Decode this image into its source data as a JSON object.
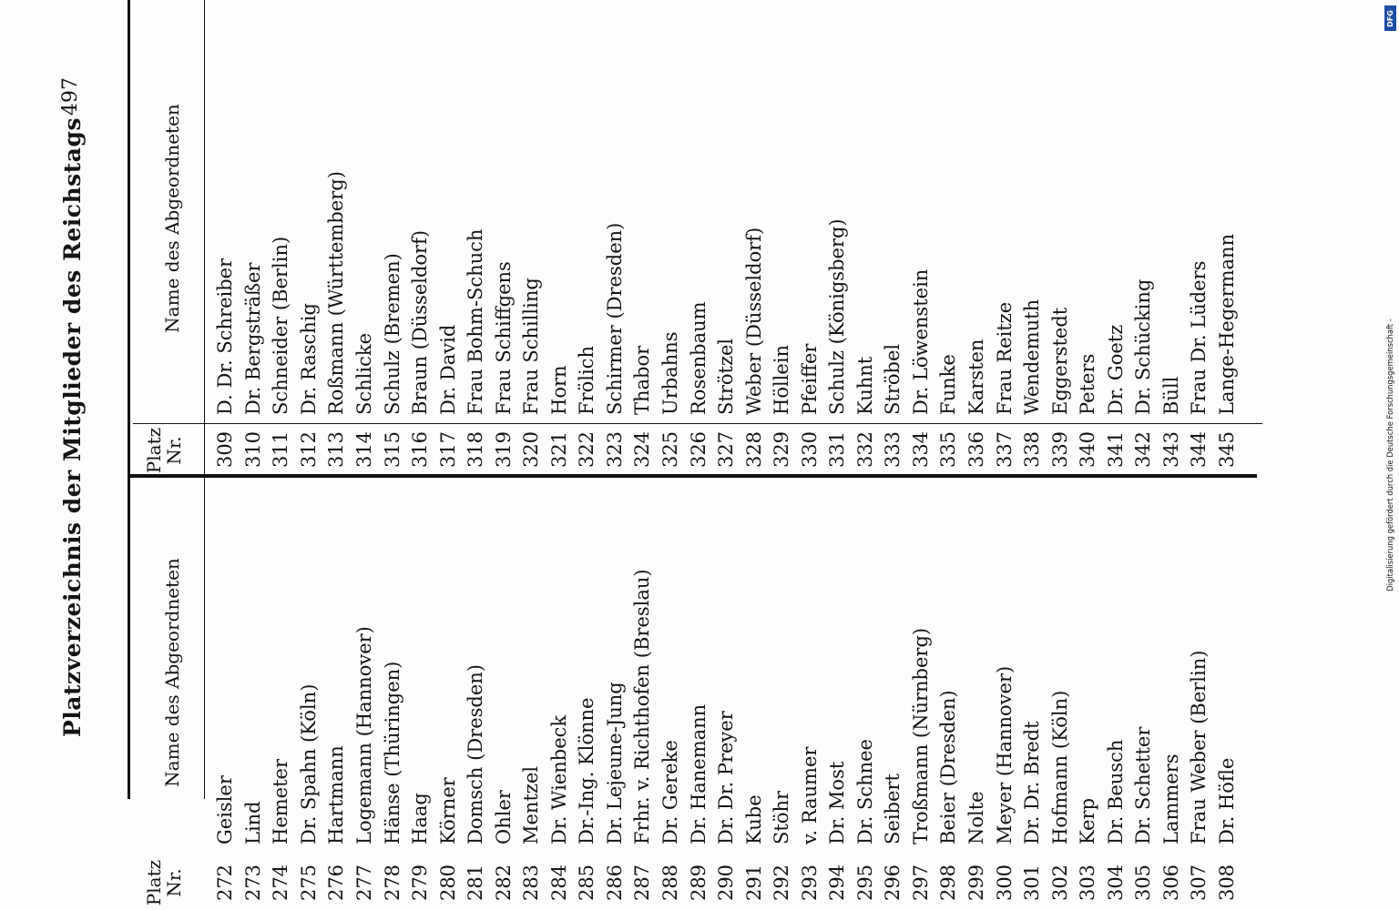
{
  "document": {
    "title": "Platzverzeichnis der Mitglieder des Reichstags",
    "page_number": "497",
    "headers": {
      "platz": "Platz",
      "nr": "Nr.",
      "name": "Name des Abgeordneten"
    },
    "left_table": {
      "rows": [
        {
          "nr": "272",
          "name": "Geisler"
        },
        {
          "nr": "273",
          "name": "Lind"
        },
        {
          "nr": "274",
          "name": "Hemeter"
        },
        {
          "nr": "275",
          "name": "Dr. Spahn (Köln)"
        },
        {
          "nr": "276",
          "name": "Hartmann"
        },
        {
          "nr": "277",
          "name": "Logemann (Hannover)"
        },
        {
          "nr": "278",
          "name": "Hänse (Thüringen)"
        },
        {
          "nr": "279",
          "name": "Haag"
        },
        {
          "nr": "280",
          "name": "Körner"
        },
        {
          "nr": "281",
          "name": "Domsch (Dresden)"
        },
        {
          "nr": "282",
          "name": "Ohler"
        },
        {
          "nr": "283",
          "name": "Mentzel"
        },
        {
          "nr": "284",
          "name": "Dr. Wienbeck"
        },
        {
          "nr": "285",
          "name": "Dr.-Ing. Klönne"
        },
        {
          "nr": "286",
          "name": "Dr. Lejeune-Jung"
        },
        {
          "nr": "287",
          "name": "Frhr. v. Richthofen (Breslau)"
        },
        {
          "nr": "288",
          "name": "Dr. Gereke"
        },
        {
          "nr": "289",
          "name": "Dr. Hanemann"
        },
        {
          "nr": "290",
          "name": "Dr. Dr. Preyer"
        },
        {
          "nr": "291",
          "name": "Kube"
        },
        {
          "nr": "292",
          "name": "Stöhr"
        },
        {
          "nr": "293",
          "name": "v. Raumer"
        },
        {
          "nr": "294",
          "name": "Dr. Most"
        },
        {
          "nr": "295",
          "name": "Dr. Schnee"
        },
        {
          "nr": "296",
          "name": "Seibert"
        },
        {
          "nr": "297",
          "name": "Troßmann (Nürnberg)"
        },
        {
          "nr": "298",
          "name": "Beier (Dresden)"
        },
        {
          "nr": "299",
          "name": "Nolte"
        },
        {
          "nr": "300",
          "name": "Meyer (Hannover)"
        },
        {
          "nr": "301",
          "name": "Dr. Dr. Bredt"
        },
        {
          "nr": "302",
          "name": "Hofmann (Köln)"
        },
        {
          "nr": "303",
          "name": "Kerp"
        },
        {
          "nr": "304",
          "name": "Dr. Beusch"
        },
        {
          "nr": "305",
          "name": "Dr. Schetter"
        },
        {
          "nr": "306",
          "name": "Lammers"
        },
        {
          "nr": "307",
          "name": "Frau Weber (Berlin)"
        },
        {
          "nr": "308",
          "name": "Dr. Höfle"
        }
      ]
    },
    "right_table": {
      "rows": [
        {
          "nr": "309",
          "name": "D. Dr. Schreiber"
        },
        {
          "nr": "310",
          "name": "Dr. Bergsträßer"
        },
        {
          "nr": "311",
          "name": "Schneider (Berlin)"
        },
        {
          "nr": "312",
          "name": "Dr. Raschig"
        },
        {
          "nr": "313",
          "name": "Roßmann (Württemberg)"
        },
        {
          "nr": "314",
          "name": "Schlicke"
        },
        {
          "nr": "315",
          "name": "Schulz (Bremen)"
        },
        {
          "nr": "316",
          "name": "Braun (Düsseldorf)"
        },
        {
          "nr": "317",
          "name": "Dr. David"
        },
        {
          "nr": "318",
          "name": "Frau Bohm-Schuch"
        },
        {
          "nr": "319",
          "name": "Frau Schiffgens"
        },
        {
          "nr": "320",
          "name": "Frau Schilling"
        },
        {
          "nr": "321",
          "name": "Horn"
        },
        {
          "nr": "322",
          "name": "Frölich"
        },
        {
          "nr": "323",
          "name": "Schirmer (Dresden)"
        },
        {
          "nr": "324",
          "name": "Thabor"
        },
        {
          "nr": "325",
          "name": "Urbahns"
        },
        {
          "nr": "326",
          "name": "Rosenbaum"
        },
        {
          "nr": "327",
          "name": "Strötzel"
        },
        {
          "nr": "328",
          "name": "Weber (Düsseldorf)"
        },
        {
          "nr": "329",
          "name": "Höllein"
        },
        {
          "nr": "330",
          "name": "Pfeiffer"
        },
        {
          "nr": "331",
          "name": "Schulz (Königsberg)"
        },
        {
          "nr": "332",
          "name": "Kuhnt"
        },
        {
          "nr": "333",
          "name": "Ströbel"
        },
        {
          "nr": "334",
          "name": "Dr. Löwenstein"
        },
        {
          "nr": "335",
          "name": "Funke"
        },
        {
          "nr": "336",
          "name": "Karsten"
        },
        {
          "nr": "337",
          "name": "Frau Reitze"
        },
        {
          "nr": "338",
          "name": "Wendemuth"
        },
        {
          "nr": "339",
          "name": "Eggerstedt"
        },
        {
          "nr": "340",
          "name": "Peters"
        },
        {
          "nr": "341",
          "name": "Dr. Goetz"
        },
        {
          "nr": "342",
          "name": "Dr. Schücking"
        },
        {
          "nr": "343",
          "name": "Büll"
        },
        {
          "nr": "344",
          "name": "Frau Dr. Lüders"
        },
        {
          "nr": "345",
          "name": "Lange-Hegermann"
        }
      ]
    }
  },
  "digitization_note": {
    "text": "Digitalisierung gefördert durch die Deutsche Forschungsgemeinschaft -",
    "logo_text": "DFG",
    "logo_color": "#1c4fa5"
  }
}
